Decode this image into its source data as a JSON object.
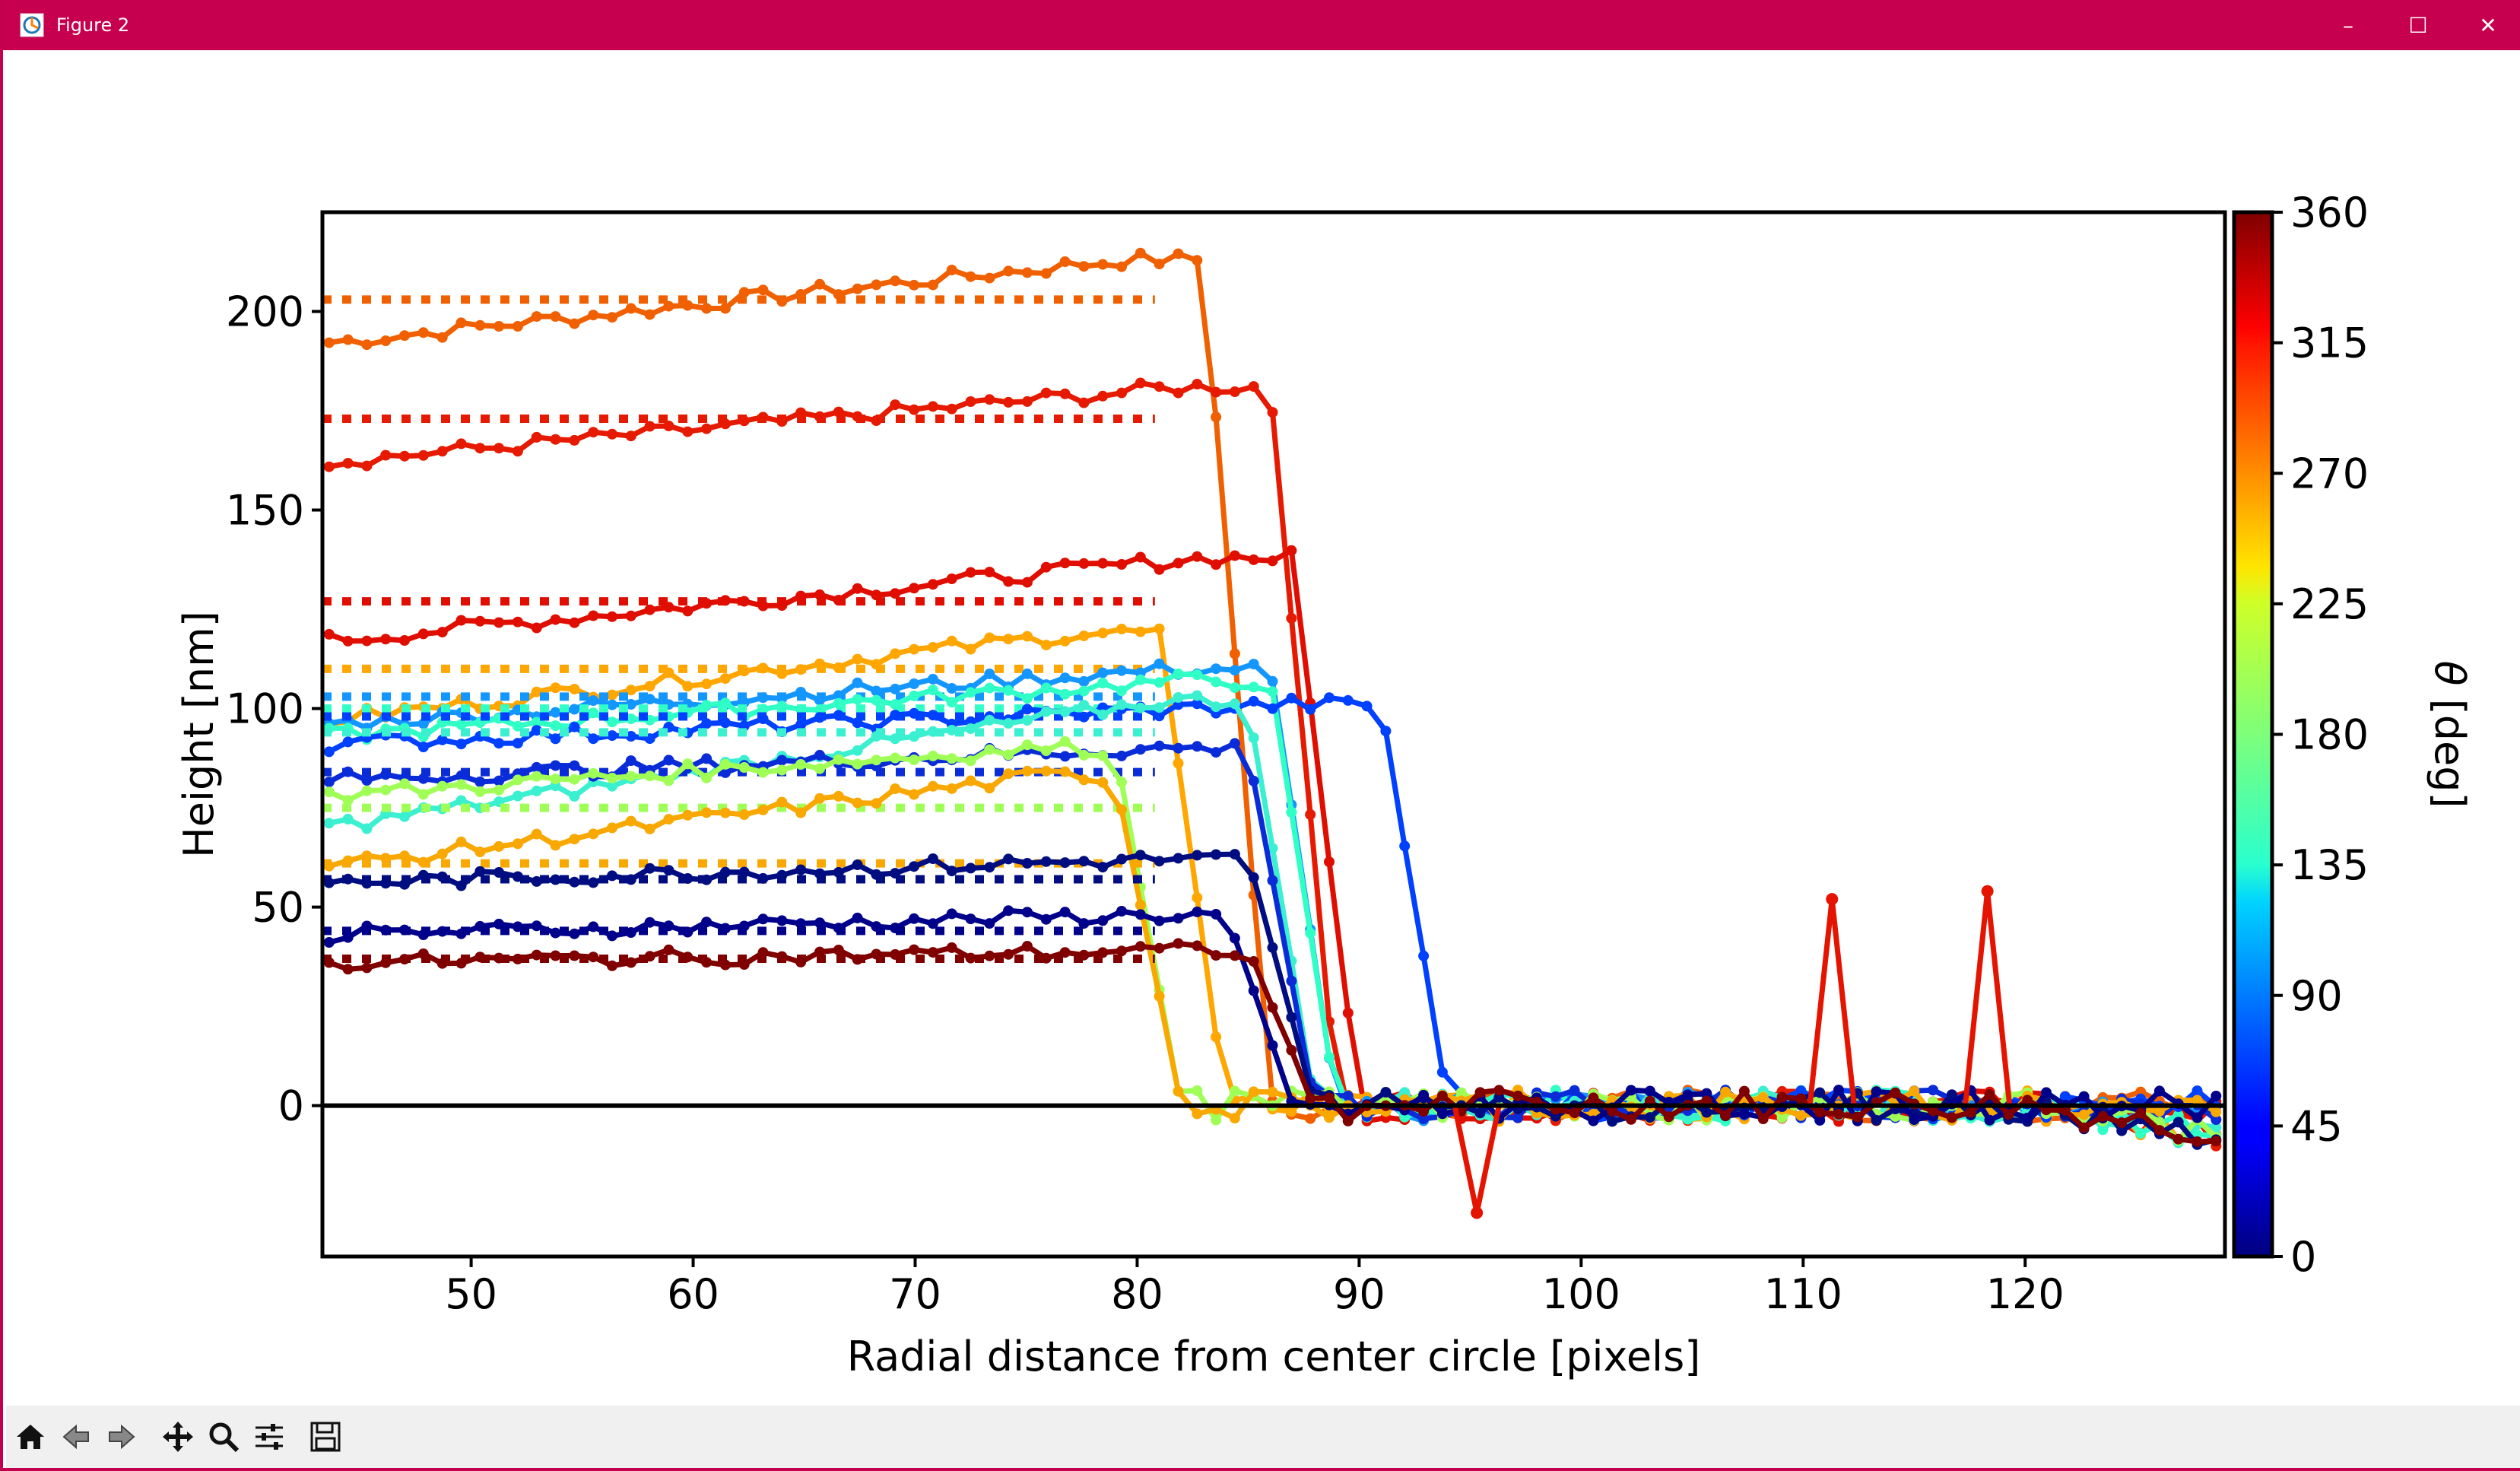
{
  "window": {
    "title": "Figure 2",
    "controls": {
      "minimize": "–",
      "maximize": "☐",
      "close": "✕"
    }
  },
  "toolbar": {
    "buttons": [
      {
        "name": "home-button",
        "icon": "home-icon"
      },
      {
        "name": "back-button",
        "icon": "arrow-left-icon"
      },
      {
        "name": "forward-button",
        "icon": "arrow-right-icon"
      },
      {
        "name": "pan-button",
        "icon": "move-icon"
      },
      {
        "name": "zoom-button",
        "icon": "magnifier-icon"
      },
      {
        "name": "configure-button",
        "icon": "sliders-icon"
      },
      {
        "name": "save-button",
        "icon": "floppy-disk-icon"
      }
    ]
  },
  "colors": {
    "titlebar": "#c6004f",
    "colormap": "jet"
  },
  "chart_data": {
    "type": "line",
    "xlabel": "Radial distance from center circle [pixels]",
    "ylabel": "Height [nm]",
    "xlim": [
      43.3,
      129
    ],
    "ylim": [
      -38,
      225
    ],
    "xticks": [
      50,
      60,
      70,
      80,
      90,
      100,
      110,
      120
    ],
    "yticks": [
      0,
      50,
      100,
      150,
      200
    ],
    "zero_line": true,
    "colorbar": {
      "label": "θ [deg]",
      "label_symbol": "θ",
      "label_rest": " [deg]",
      "range": [
        0,
        360
      ],
      "ticks": [
        0,
        45,
        90,
        135,
        180,
        225,
        270,
        315,
        360
      ],
      "colormap": "jet"
    },
    "series": [
      {
        "color": "#f06000",
        "plateau": 203,
        "x_edge": 83,
        "level_line": 203,
        "start": 192,
        "peak": 213
      },
      {
        "color": "#e61a00",
        "plateau": 174,
        "x_edge": 86,
        "level_line": 173,
        "start": 162,
        "peak": 181
      },
      {
        "color": "#e00e00",
        "plateau": 130,
        "x_edge": 87,
        "level_line": 127,
        "start": 117,
        "peak": 138
      },
      {
        "color": "#ffa600",
        "plateau": 110,
        "x_edge": 81,
        "level_line": 110,
        "start": 97,
        "peak": 119
      },
      {
        "color": "#1496ff",
        "plateau": 104,
        "x_edge": 86,
        "level_line": 103,
        "start": 96,
        "peak": 110
      },
      {
        "color": "#30ffc6",
        "plateau": 101,
        "x_edge": 86,
        "level_line": 100,
        "start": 93,
        "peak": 107
      },
      {
        "color": "#0040ff",
        "plateau": 100,
        "x_edge": 91,
        "level_line": 98,
        "start": 91,
        "peak": 101
      },
      {
        "color": "#3af0d0",
        "plateau": 95,
        "x_edge": 85,
        "level_line": 94,
        "start": 70,
        "peak": 102
      },
      {
        "color": "#0a2cd8",
        "plateau": 87,
        "x_edge": 85,
        "level_line": 84,
        "start": 82,
        "peak": 90
      },
      {
        "color": "#a0ff56",
        "plateau": 84,
        "x_edge": 79,
        "level_line": 75,
        "start": 78,
        "peak": 90
      },
      {
        "color": "#f8a800",
        "plateau": 80,
        "x_edge": 79,
        "level_line": 61,
        "start": 60,
        "peak": 83
      },
      {
        "color": "#000d80",
        "plateau": 57,
        "x_edge": 85,
        "level_line": 57,
        "start": 56,
        "peak": 62
      },
      {
        "color": "#00008a",
        "plateau": 45,
        "x_edge": 84,
        "level_line": 44,
        "start": 43,
        "peak": 48
      },
      {
        "color": "#800000",
        "plateau": 36,
        "x_edge": 85,
        "level_line": 37,
        "start": 36,
        "peak": 39
      }
    ],
    "tail_spikes": [
      {
        "x": 111.3,
        "y": 52,
        "color": "#e41400"
      },
      {
        "x": 118.3,
        "y": 54,
        "color": "#e41400"
      },
      {
        "x": 95.3,
        "y": -27,
        "color": "#e41400"
      }
    ]
  }
}
